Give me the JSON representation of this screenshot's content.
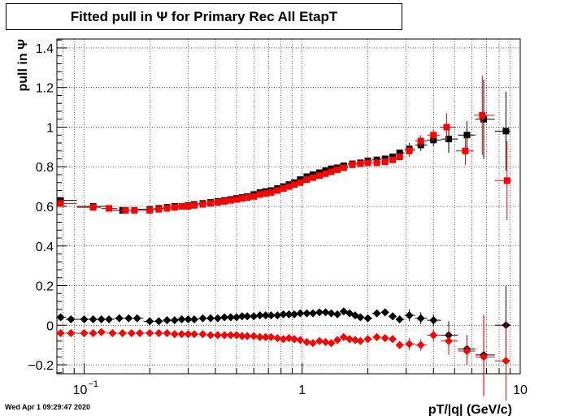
{
  "chart_data": {
    "type": "scatter",
    "title": "Fitted pull in  Ψ  for Primary Rec All EtapT",
    "xlabel": "pT/|q| (GeV/c)",
    "ylabel": "pull in  Ψ",
    "x_scale": "log",
    "xlim": [
      0.075,
      10
    ],
    "ylim": [
      -0.245,
      1.445
    ],
    "grid": true,
    "x_major_ticks": [
      {
        "value": 0.1,
        "label": "10"
      },
      {
        "value": 1,
        "label": "1"
      },
      {
        "value": 10,
        "label": "10"
      }
    ],
    "x_major_tick_exponent": {
      "0.1": "−1"
    },
    "y_ticks": [
      {
        "value": -0.2,
        "label": "−0.2"
      },
      {
        "value": 0,
        "label": "0"
      },
      {
        "value": 0.2,
        "label": "0.2"
      },
      {
        "value": 0.4,
        "label": "0.4"
      },
      {
        "value": 0.6,
        "label": "0.6"
      },
      {
        "value": 0.8,
        "label": "0.8"
      },
      {
        "value": 1,
        "label": "1"
      },
      {
        "value": 1.2,
        "label": "1.2"
      },
      {
        "value": 1.4,
        "label": "1.4"
      }
    ],
    "series": [
      {
        "marker": "square",
        "color": "#000000",
        "points": [
          [
            0.078,
            0.63
          ],
          [
            0.11,
            0.6
          ],
          [
            0.15,
            0.58
          ],
          [
            0.2,
            0.585
          ],
          [
            0.22,
            0.59
          ],
          [
            0.24,
            0.595
          ],
          [
            0.26,
            0.6
          ],
          [
            0.28,
            0.6
          ],
          [
            0.3,
            0.605
          ],
          [
            0.32,
            0.61
          ],
          [
            0.35,
            0.615
          ],
          [
            0.38,
            0.62
          ],
          [
            0.41,
            0.625
          ],
          [
            0.44,
            0.63
          ],
          [
            0.47,
            0.635
          ],
          [
            0.5,
            0.64
          ],
          [
            0.53,
            0.645
          ],
          [
            0.56,
            0.65
          ],
          [
            0.6,
            0.66
          ],
          [
            0.64,
            0.67
          ],
          [
            0.68,
            0.675
          ],
          [
            0.72,
            0.68
          ],
          [
            0.77,
            0.69
          ],
          [
            0.82,
            0.7
          ],
          [
            0.87,
            0.71
          ],
          [
            0.92,
            0.72
          ],
          [
            0.98,
            0.735
          ],
          [
            1.05,
            0.75
          ],
          [
            1.12,
            0.76
          ],
          [
            1.2,
            0.77
          ],
          [
            1.28,
            0.78
          ],
          [
            1.36,
            0.79
          ],
          [
            1.45,
            0.795
          ],
          [
            1.55,
            0.805
          ],
          [
            1.7,
            0.815
          ],
          [
            1.85,
            0.82
          ],
          [
            2.0,
            0.83
          ],
          [
            2.2,
            0.835
          ],
          [
            2.4,
            0.84
          ],
          [
            2.6,
            0.85
          ],
          [
            2.8,
            0.87
          ],
          [
            3.1,
            0.89
          ],
          [
            3.5,
            0.91
          ],
          [
            4.0,
            0.935
          ],
          [
            4.7,
            0.94
          ],
          [
            5.7,
            0.96
          ],
          [
            6.8,
            1.04
          ],
          [
            8.6,
            0.98
          ]
        ]
      },
      {
        "marker": "square",
        "color": "#ff0000",
        "points": [
          [
            0.078,
            0.615
          ],
          [
            0.11,
            0.595
          ],
          [
            0.13,
            0.59
          ],
          [
            0.155,
            0.58
          ],
          [
            0.17,
            0.58
          ],
          [
            0.2,
            0.58
          ],
          [
            0.22,
            0.585
          ],
          [
            0.24,
            0.59
          ],
          [
            0.26,
            0.595
          ],
          [
            0.28,
            0.6
          ],
          [
            0.3,
            0.6
          ],
          [
            0.32,
            0.605
          ],
          [
            0.35,
            0.61
          ],
          [
            0.38,
            0.615
          ],
          [
            0.41,
            0.62
          ],
          [
            0.44,
            0.625
          ],
          [
            0.47,
            0.63
          ],
          [
            0.5,
            0.635
          ],
          [
            0.53,
            0.64
          ],
          [
            0.56,
            0.645
          ],
          [
            0.6,
            0.65
          ],
          [
            0.64,
            0.66
          ],
          [
            0.68,
            0.665
          ],
          [
            0.72,
            0.67
          ],
          [
            0.77,
            0.68
          ],
          [
            0.82,
            0.69
          ],
          [
            0.87,
            0.7
          ],
          [
            0.92,
            0.71
          ],
          [
            0.98,
            0.72
          ],
          [
            1.05,
            0.735
          ],
          [
            1.12,
            0.745
          ],
          [
            1.2,
            0.755
          ],
          [
            1.28,
            0.765
          ],
          [
            1.36,
            0.775
          ],
          [
            1.45,
            0.785
          ],
          [
            1.55,
            0.795
          ],
          [
            1.7,
            0.81
          ],
          [
            1.85,
            0.815
          ],
          [
            2.0,
            0.82
          ],
          [
            2.2,
            0.82
          ],
          [
            2.4,
            0.825
          ],
          [
            2.6,
            0.835
          ],
          [
            2.8,
            0.85
          ],
          [
            3.1,
            0.88
          ],
          [
            3.5,
            0.93
          ],
          [
            4.0,
            0.96
          ],
          [
            4.6,
            1.0
          ],
          [
            5.6,
            0.88
          ],
          [
            6.7,
            1.06
          ],
          [
            8.7,
            0.73
          ]
        ]
      },
      {
        "marker": "diamond",
        "color": "#000000",
        "points": [
          [
            0.078,
            0.04
          ],
          [
            0.087,
            0.03
          ],
          [
            0.1,
            0.03
          ],
          [
            0.11,
            0.03
          ],
          [
            0.12,
            0.03
          ],
          [
            0.13,
            0.03
          ],
          [
            0.145,
            0.035
          ],
          [
            0.16,
            0.035
          ],
          [
            0.175,
            0.035
          ],
          [
            0.2,
            0.02
          ],
          [
            0.22,
            0.02
          ],
          [
            0.24,
            0.025
          ],
          [
            0.26,
            0.025
          ],
          [
            0.28,
            0.03
          ],
          [
            0.3,
            0.03
          ],
          [
            0.32,
            0.03
          ],
          [
            0.35,
            0.035
          ],
          [
            0.38,
            0.035
          ],
          [
            0.41,
            0.035
          ],
          [
            0.44,
            0.04
          ],
          [
            0.47,
            0.04
          ],
          [
            0.5,
            0.04
          ],
          [
            0.53,
            0.045
          ],
          [
            0.56,
            0.045
          ],
          [
            0.6,
            0.045
          ],
          [
            0.64,
            0.05
          ],
          [
            0.68,
            0.05
          ],
          [
            0.72,
            0.05
          ],
          [
            0.77,
            0.05
          ],
          [
            0.82,
            0.055
          ],
          [
            0.87,
            0.055
          ],
          [
            0.92,
            0.055
          ],
          [
            0.98,
            0.06
          ],
          [
            1.05,
            0.06
          ],
          [
            1.12,
            0.06
          ],
          [
            1.2,
            0.065
          ],
          [
            1.28,
            0.065
          ],
          [
            1.36,
            0.06
          ],
          [
            1.45,
            0.055
          ],
          [
            1.55,
            0.07
          ],
          [
            1.65,
            0.06
          ],
          [
            1.75,
            0.05
          ],
          [
            1.85,
            0.04
          ],
          [
            2.0,
            0.035
          ],
          [
            2.2,
            0.06
          ],
          [
            2.4,
            0.065
          ],
          [
            2.6,
            0.045
          ],
          [
            2.8,
            0.03
          ],
          [
            3.1,
            0.05
          ],
          [
            3.5,
            0.035
          ],
          [
            4.0,
            0.025
          ],
          [
            4.7,
            -0.05
          ],
          [
            5.7,
            -0.12
          ],
          [
            6.8,
            -0.15
          ],
          [
            8.6,
            0.0
          ]
        ]
      },
      {
        "marker": "diamond",
        "color": "#ff0000",
        "points": [
          [
            0.078,
            -0.04
          ],
          [
            0.087,
            -0.04
          ],
          [
            0.1,
            -0.04
          ],
          [
            0.11,
            -0.04
          ],
          [
            0.12,
            -0.035
          ],
          [
            0.135,
            -0.04
          ],
          [
            0.15,
            -0.04
          ],
          [
            0.165,
            -0.04
          ],
          [
            0.18,
            -0.04
          ],
          [
            0.2,
            -0.04
          ],
          [
            0.22,
            -0.04
          ],
          [
            0.24,
            -0.04
          ],
          [
            0.26,
            -0.045
          ],
          [
            0.28,
            -0.045
          ],
          [
            0.3,
            -0.045
          ],
          [
            0.32,
            -0.045
          ],
          [
            0.35,
            -0.045
          ],
          [
            0.38,
            -0.05
          ],
          [
            0.41,
            -0.05
          ],
          [
            0.44,
            -0.05
          ],
          [
            0.47,
            -0.05
          ],
          [
            0.5,
            -0.05
          ],
          [
            0.53,
            -0.055
          ],
          [
            0.56,
            -0.055
          ],
          [
            0.6,
            -0.055
          ],
          [
            0.64,
            -0.06
          ],
          [
            0.68,
            -0.06
          ],
          [
            0.72,
            -0.06
          ],
          [
            0.77,
            -0.065
          ],
          [
            0.82,
            -0.07
          ],
          [
            0.87,
            -0.065
          ],
          [
            0.92,
            -0.07
          ],
          [
            0.98,
            -0.075
          ],
          [
            1.05,
            -0.085
          ],
          [
            1.12,
            -0.09
          ],
          [
            1.2,
            -0.08
          ],
          [
            1.28,
            -0.085
          ],
          [
            1.36,
            -0.09
          ],
          [
            1.45,
            -0.075
          ],
          [
            1.55,
            -0.06
          ],
          [
            1.65,
            -0.07
          ],
          [
            1.75,
            -0.075
          ],
          [
            1.85,
            -0.08
          ],
          [
            2.0,
            -0.07
          ],
          [
            2.2,
            -0.06
          ],
          [
            2.4,
            -0.065
          ],
          [
            2.6,
            -0.07
          ],
          [
            2.8,
            -0.1
          ],
          [
            3.1,
            -0.095
          ],
          [
            3.5,
            -0.1
          ],
          [
            4.0,
            -0.05
          ],
          [
            4.7,
            -0.08
          ],
          [
            5.7,
            -0.13
          ],
          [
            6.8,
            -0.16
          ],
          [
            8.6,
            -0.18
          ]
        ]
      }
    ]
  },
  "footer": {
    "timestamp": "Wed Apr  1 09:29:47 2020"
  }
}
